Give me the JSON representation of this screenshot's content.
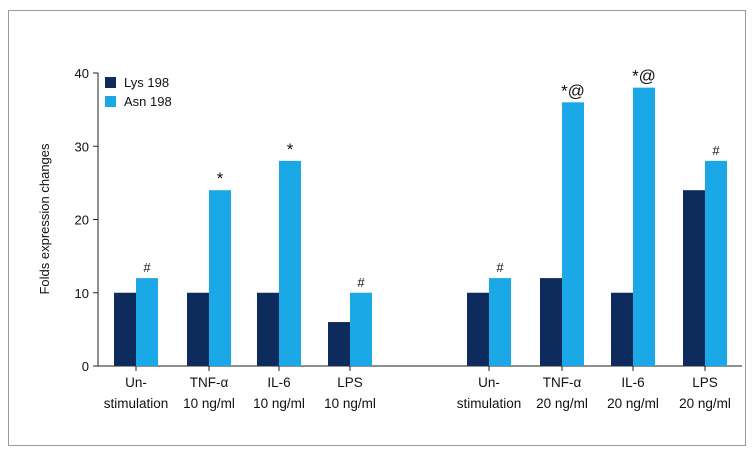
{
  "chart_data": {
    "type": "bar",
    "title": "",
    "ylabel": "Folds expression changes",
    "xlabel": "",
    "ylim": [
      0,
      40
    ],
    "yticks": [
      0,
      10,
      20,
      30,
      40
    ],
    "grid": false,
    "legend_position": "top-left",
    "groups": [
      {
        "categories": [
          {
            "label": [
              "Un-",
              "stimulation"
            ]
          },
          {
            "label": [
              "TNF-α",
              "10 ng/ml"
            ]
          },
          {
            "label": [
              "IL-6",
              "10 ng/ml"
            ]
          },
          {
            "label": [
              "LPS",
              "10 ng/ml"
            ]
          }
        ]
      },
      {
        "categories": [
          {
            "label": [
              "Un-",
              "stimulation"
            ]
          },
          {
            "label": [
              "TNF-α",
              "20 ng/ml"
            ]
          },
          {
            "label": [
              "IL-6",
              "20 ng/ml"
            ]
          },
          {
            "label": [
              "LPS",
              "20 ng/ml"
            ]
          }
        ]
      }
    ],
    "series": [
      {
        "name": "Lys 198",
        "color": "#0d2b5c",
        "values": [
          10,
          10,
          10,
          6,
          10,
          12,
          10,
          24
        ]
      },
      {
        "name": "Asn 198",
        "color": "#1aa9e6",
        "values": [
          12,
          24,
          28,
          10,
          12,
          36,
          38,
          28
        ]
      }
    ],
    "annotations": [
      "#",
      "*",
      "*",
      "#",
      "#",
      "*@",
      "*@",
      "#"
    ]
  }
}
